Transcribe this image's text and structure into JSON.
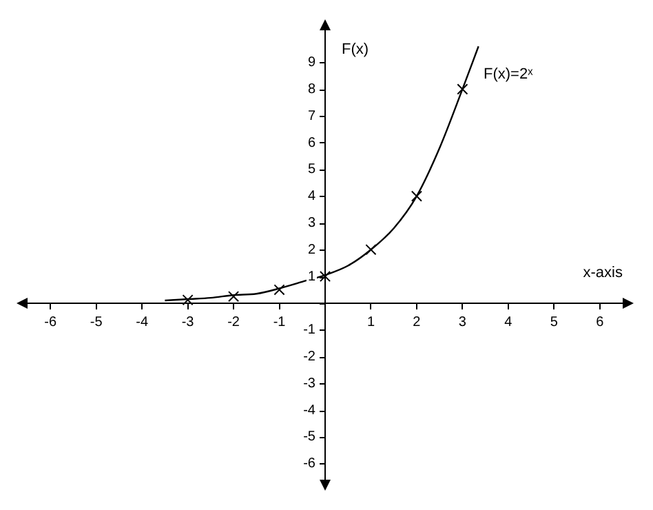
{
  "chart_data": {
    "type": "line",
    "xlabel": "x-axis",
    "ylabel": "F(x)",
    "annotations": [
      "F(x)=2ˣ"
    ],
    "xlim": [
      -6.5,
      6.5
    ],
    "ylim": [
      -6.6,
      10.2
    ],
    "xticks": [
      -6,
      -5,
      -4,
      -3,
      -2,
      -1,
      {
        "value": 0,
        "label": null
      },
      1,
      2,
      3,
      4,
      5,
      6
    ],
    "yticks": [
      -6,
      -5,
      -4,
      -3,
      -2,
      -1,
      {
        "value": 0,
        "label": null
      },
      1,
      2,
      3,
      4,
      5,
      6,
      7,
      8,
      9
    ],
    "grid": false,
    "legend": false,
    "series": [
      {
        "type": "line",
        "color": "#000000",
        "marker": "none",
        "x": [
          -3.5,
          -3,
          -2.5,
          -2,
          -1.5,
          -1,
          -0.5,
          0,
          0.5,
          1,
          1.5,
          2,
          2.5,
          3,
          3.35
        ],
        "values": [
          0.1,
          0.15,
          0.2,
          0.3,
          0.35,
          0.55,
          0.8,
          1.05,
          1.4,
          2,
          2.8,
          4,
          5.8,
          8,
          9.6
        ]
      },
      {
        "type": "scatter",
        "color": "#000000",
        "marker": "cross",
        "x": [
          -3,
          -2,
          -1,
          0,
          1,
          2,
          3
        ],
        "values": [
          0.12,
          0.25,
          0.5,
          1,
          2,
          4,
          8
        ]
      }
    ]
  }
}
